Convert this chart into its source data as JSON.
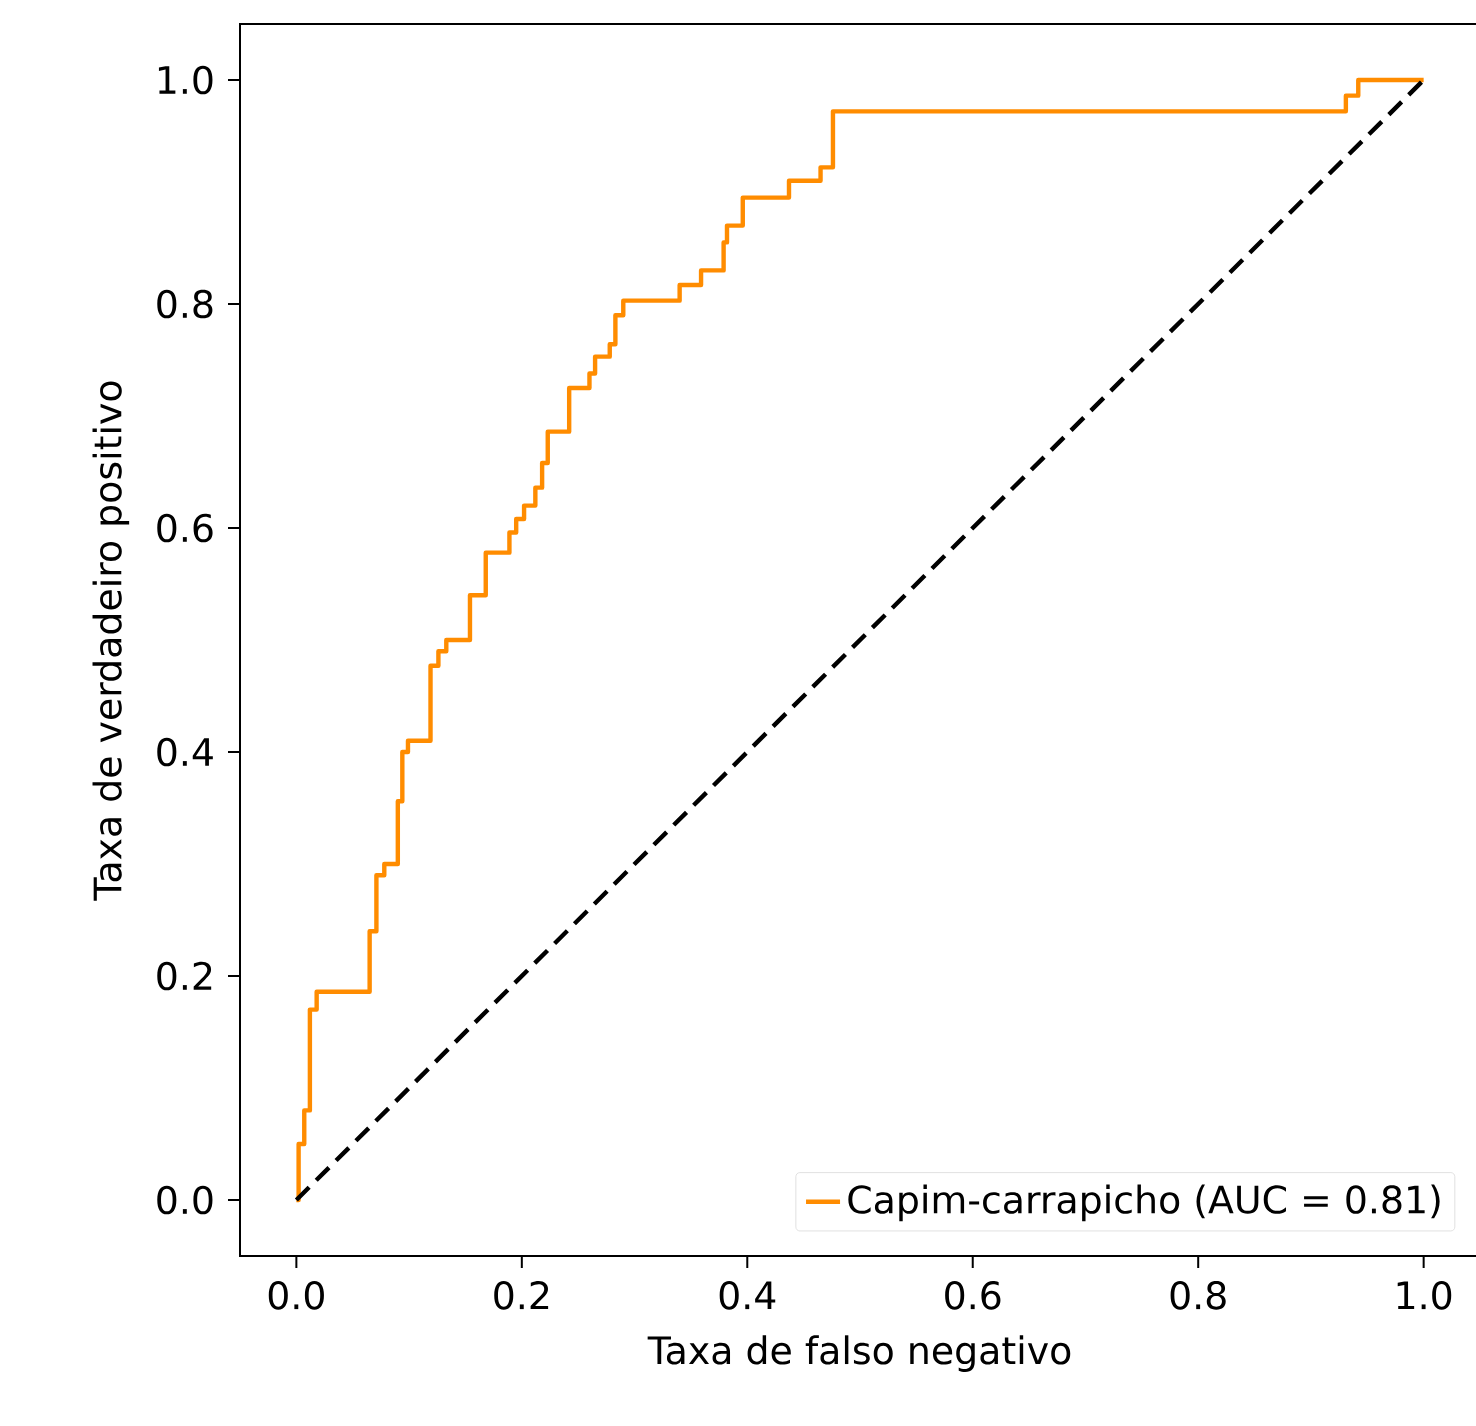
{
  "chart_data": {
    "type": "line",
    "xlabel": "Taxa de falso negativo",
    "ylabel": "Taxa de verdadeiro positivo",
    "series": [
      {
        "name": "Capim-carrapicho (AUC = 0.81)",
        "color": "#ff8c00",
        "line_style": "solid",
        "x": [
          0,
          0.002,
          0.002,
          0.007,
          0.007,
          0.012,
          0.012,
          0.018,
          0.018,
          0.065,
          0.065,
          0.071,
          0.071,
          0.078,
          0.078,
          0.09,
          0.09,
          0.094,
          0.094,
          0.099,
          0.099,
          0.119,
          0.119,
          0.126,
          0.126,
          0.133,
          0.133,
          0.154,
          0.154,
          0.168,
          0.168,
          0.189,
          0.189,
          0.195,
          0.195,
          0.202,
          0.202,
          0.212,
          0.212,
          0.218,
          0.218,
          0.223,
          0.223,
          0.242,
          0.242,
          0.26,
          0.26,
          0.265,
          0.265,
          0.278,
          0.278,
          0.283,
          0.283,
          0.29,
          0.29,
          0.34,
          0.34,
          0.359,
          0.359,
          0.379,
          0.379,
          0.382,
          0.382,
          0.396,
          0.396,
          0.437,
          0.437,
          0.465,
          0.465,
          0.476,
          0.476,
          0.931,
          0.931,
          0.942,
          0.942,
          1.0
        ],
        "values": [
          0,
          0,
          0.05,
          0.05,
          0.08,
          0.08,
          0.17,
          0.17,
          0.186,
          0.186,
          0.24,
          0.24,
          0.29,
          0.29,
          0.3,
          0.3,
          0.356,
          0.356,
          0.4,
          0.4,
          0.41,
          0.41,
          0.477,
          0.477,
          0.49,
          0.49,
          0.5,
          0.5,
          0.54,
          0.54,
          0.578,
          0.578,
          0.596,
          0.596,
          0.608,
          0.608,
          0.62,
          0.62,
          0.636,
          0.636,
          0.658,
          0.658,
          0.686,
          0.686,
          0.725,
          0.725,
          0.738,
          0.738,
          0.753,
          0.753,
          0.764,
          0.764,
          0.79,
          0.79,
          0.803,
          0.803,
          0.817,
          0.817,
          0.83,
          0.83,
          0.855,
          0.855,
          0.87,
          0.87,
          0.895,
          0.895,
          0.91,
          0.91,
          0.922,
          0.922,
          0.972,
          0.972,
          0.986,
          0.986,
          1.0,
          1.0
        ]
      },
      {
        "color": "#000000",
        "line_style": "dashed",
        "x": [
          0,
          1
        ],
        "values": [
          0,
          1
        ]
      }
    ],
    "xlim": [
      -0.05,
      1.05
    ],
    "ylim": [
      -0.05,
      1.05
    ],
    "xticks": [
      {
        "value": 0,
        "label": "0.0"
      },
      0.2,
      0.4,
      0.6,
      0.8,
      {
        "value": 1,
        "label": "1.0"
      }
    ],
    "yticks": [
      {
        "value": 0,
        "label": "0.0"
      },
      0.2,
      0.4,
      0.6,
      0.8,
      {
        "value": 1,
        "label": "1.0"
      }
    ],
    "legend": "bottom right"
  }
}
